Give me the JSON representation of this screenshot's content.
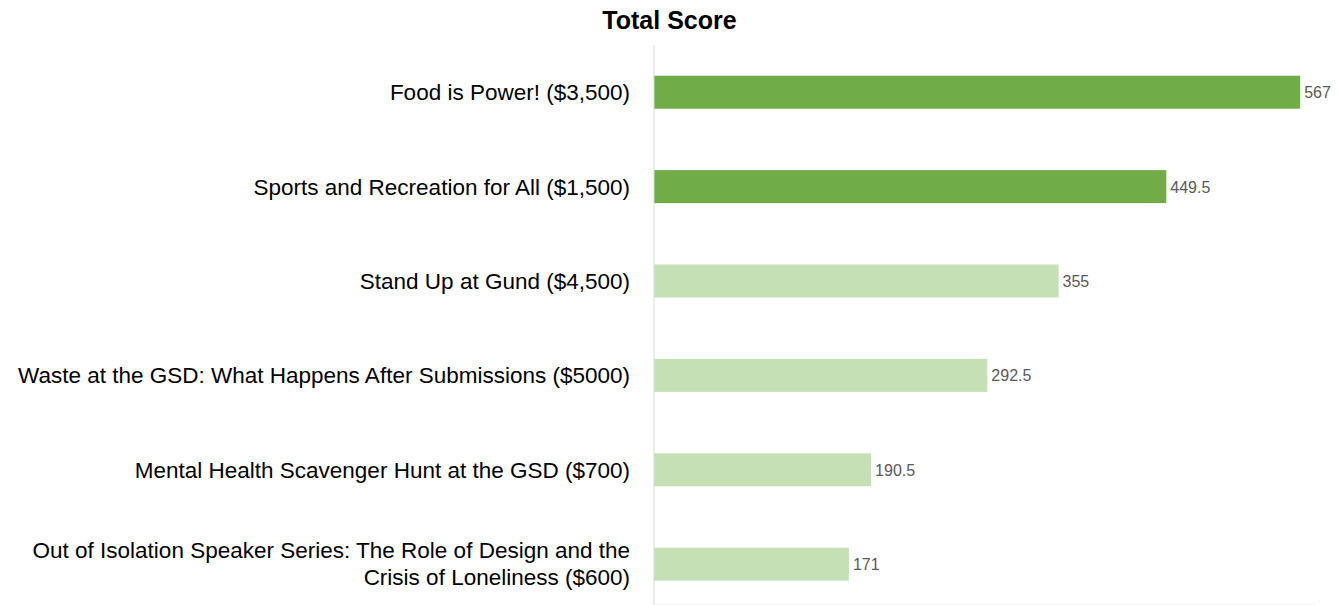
{
  "chart_data": {
    "type": "bar",
    "title": "Total Score",
    "orientation": "horizontal",
    "categories": [
      "Food is Power! ($3,500)",
      "Sports and Recreation for All ($1,500)",
      "Stand Up at Gund ($4,500)",
      "Waste at the GSD: What Happens After Submissions ($5000)",
      "Mental Health Scavenger Hunt at the GSD ($700)",
      "Out of Isolation Speaker Series: The Role of Design and the Crisis of Loneliness ($600)"
    ],
    "values": [
      567,
      449.5,
      355,
      292.5,
      190.5,
      171
    ],
    "colors": [
      "#70ad47",
      "#70ad47",
      "#c5e0b4",
      "#c5e0b4",
      "#c5e0b4",
      "#c5e0b4"
    ],
    "xlim": [
      0,
      580
    ],
    "data_labels": true,
    "tick_labels": false,
    "grid": false
  }
}
